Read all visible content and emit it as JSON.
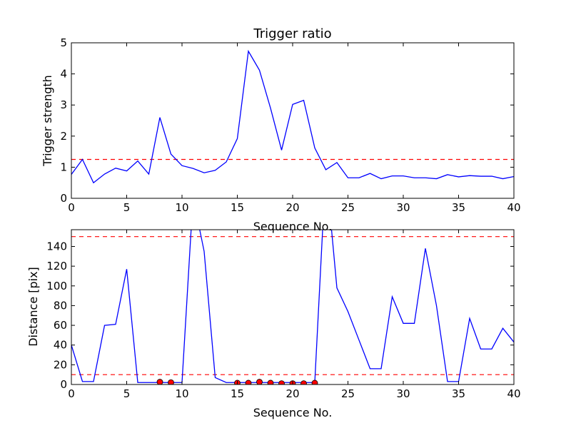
{
  "chart_data": [
    {
      "type": "line",
      "title": "Trigger ratio",
      "xlabel": "Sequence No.",
      "ylabel": "Trigger strength",
      "xlim": [
        0,
        40
      ],
      "ylim": [
        0,
        5
      ],
      "xticks": [
        "0",
        "5",
        "10",
        "15",
        "20",
        "25",
        "30",
        "35",
        "40"
      ],
      "yticks": [
        "0",
        "1",
        "2",
        "3",
        "4",
        "5"
      ],
      "grid": false,
      "series": [
        {
          "color": "#0000ff",
          "style": "solid",
          "x": [
            0,
            1,
            2,
            3,
            4,
            5,
            6,
            7,
            8,
            9,
            10,
            11,
            12,
            13,
            14,
            15,
            16,
            17,
            18,
            19,
            20,
            21,
            22,
            23,
            24,
            25,
            26,
            27,
            28,
            29,
            30,
            31,
            32,
            33,
            34,
            35,
            36,
            37,
            38,
            39,
            40
          ],
          "y": [
            0.77,
            1.25,
            0.5,
            0.78,
            0.97,
            0.88,
            1.2,
            0.78,
            2.6,
            1.42,
            1.05,
            0.96,
            0.82,
            0.9,
            1.17,
            1.92,
            4.73,
            4.12,
            2.9,
            1.55,
            3.02,
            3.15,
            1.62,
            0.92,
            1.15,
            0.66,
            0.66,
            0.8,
            0.63,
            0.72,
            0.72,
            0.66,
            0.66,
            0.63,
            0.76,
            0.69,
            0.73,
            0.71,
            0.71,
            0.63,
            0.7
          ]
        }
      ],
      "hlines": [
        {
          "y": 1.25,
          "color": "#ff0000",
          "style": "dashed"
        }
      ]
    },
    {
      "type": "line",
      "title": "",
      "xlabel": "Sequence No.",
      "ylabel": "Distance [pix]",
      "xlim": [
        0,
        40
      ],
      "ylim": [
        0,
        157
      ],
      "xticks": [
        "0",
        "5",
        "10",
        "15",
        "20",
        "25",
        "30",
        "35",
        "40"
      ],
      "yticks": [
        "0",
        "20",
        "40",
        "60",
        "80",
        "100",
        "120",
        "140"
      ],
      "grid": false,
      "series": [
        {
          "color": "#0000ff",
          "style": "solid",
          "x": [
            0,
            1,
            2,
            3,
            4,
            5,
            6,
            7,
            8,
            9,
            10,
            11,
            12,
            13,
            14,
            15,
            16,
            17,
            18,
            19,
            20,
            21,
            22,
            23,
            24,
            25,
            26,
            27,
            28,
            29,
            30,
            31,
            32,
            33,
            34,
            35,
            36,
            37,
            38,
            39,
            40
          ],
          "y": [
            40,
            3,
            3,
            60,
            61,
            117,
            2,
            2,
            2,
            2,
            2,
            190,
            135,
            7,
            2,
            2,
            2,
            2,
            2,
            2,
            2,
            2,
            2,
            220,
            98,
            74,
            45,
            16,
            16,
            89,
            62,
            62,
            138,
            80,
            3,
            3,
            67,
            36,
            36,
            57,
            43
          ]
        }
      ],
      "markers": {
        "color": "#ff0000",
        "x": [
          8,
          9,
          15,
          16,
          17,
          18,
          19,
          20,
          21,
          22
        ],
        "y": [
          2.5,
          2,
          1.5,
          1.5,
          2.5,
          1.5,
          1,
          1,
          1,
          1.5
        ]
      },
      "hlines": [
        {
          "y": 150,
          "color": "#ff0000",
          "style": "dashed"
        },
        {
          "y": 10,
          "color": "#ff0000",
          "style": "dashed"
        }
      ]
    }
  ]
}
